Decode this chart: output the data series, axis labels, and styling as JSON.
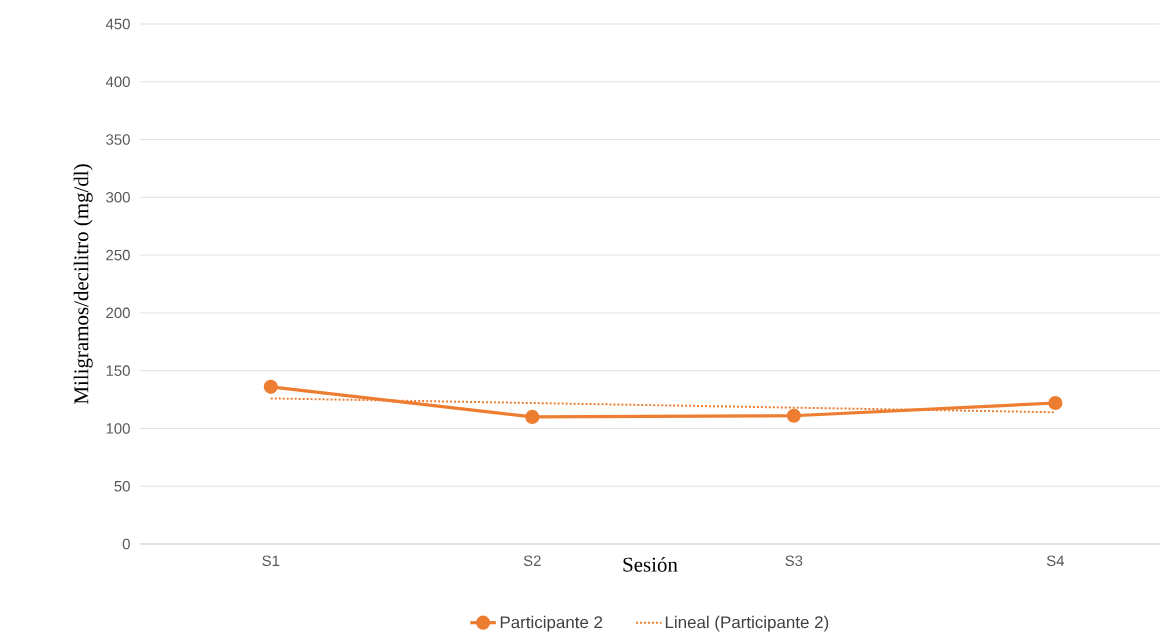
{
  "chart_data": {
    "type": "line",
    "xlabel": "Sesión",
    "ylabel": "Miligramos/decilitro (mg/dl)",
    "categories": [
      "S1",
      "S2",
      "S3",
      "S4"
    ],
    "series": [
      {
        "name": "Participante 2",
        "color": "#ed7d31",
        "values": [
          136,
          110,
          111,
          122
        ],
        "marker": "circle",
        "line_style": "solid"
      },
      {
        "name": "Lineal (Participante 2)",
        "color": "#ed7d31",
        "values": [
          126,
          122,
          118,
          114
        ],
        "marker": "none",
        "line_style": "dotted"
      }
    ],
    "ylim": [
      0,
      450
    ],
    "yticks": [
      0,
      50,
      100,
      150,
      200,
      250,
      300,
      350,
      400,
      450
    ],
    "grid": "y",
    "legend": "bottom"
  }
}
